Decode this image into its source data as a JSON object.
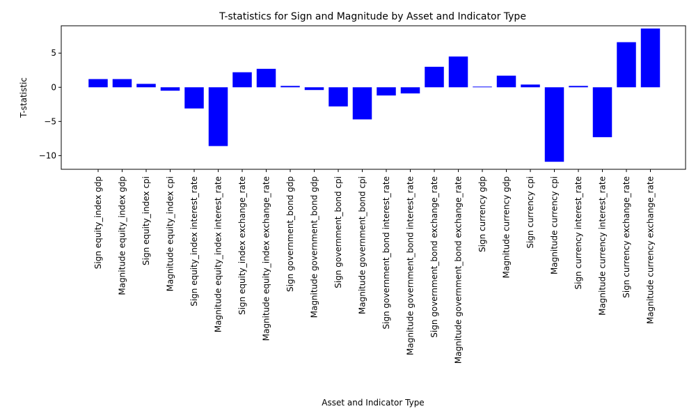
{
  "chart_data": {
    "type": "bar",
    "title": "T-statistics for Sign and Magnitude by Asset and Indicator Type",
    "xlabel": "Asset and Indicator Type",
    "ylabel": "T-statistic",
    "ylim": [
      -12,
      9
    ],
    "yticks": [
      -10,
      -5,
      0,
      5
    ],
    "yticklabels": [
      "−10",
      "−5",
      "0",
      "5"
    ],
    "grid": false,
    "bar_color": "#0000ff",
    "categories": [
      "Sign equity_index gdp",
      "Magnitude equity_index gdp",
      "Sign equity_index cpi",
      "Magnitude equity_index cpi",
      "Sign equity_index interest_rate",
      "Magnitude equity_index interest_rate",
      "Sign equity_index exchange_rate",
      "Magnitude equity_index exchange_rate",
      "Sign government_bond gdp",
      "Magnitude government_bond gdp",
      "Sign government_bond cpi",
      "Magnitude government_bond cpi",
      "Sign government_bond interest_rate",
      "Magnitude government_bond interest_rate",
      "Sign government_bond exchange_rate",
      "Magnitude government_bond exchange_rate",
      "Sign currency gdp",
      "Magnitude currency gdp",
      "Sign currency cpi",
      "Magnitude currency cpi",
      "Sign currency interest_rate",
      "Magnitude currency interest_rate",
      "Sign currency exchange_rate",
      "Magnitude currency exchange_rate"
    ],
    "values": [
      1.2,
      1.2,
      0.5,
      -0.5,
      -3.1,
      -8.6,
      2.2,
      2.7,
      0.2,
      -0.4,
      -2.8,
      -4.7,
      -1.2,
      -0.9,
      3.0,
      4.5,
      0.1,
      1.7,
      0.4,
      -10.9,
      0.2,
      -7.3,
      6.6,
      8.6
    ]
  }
}
